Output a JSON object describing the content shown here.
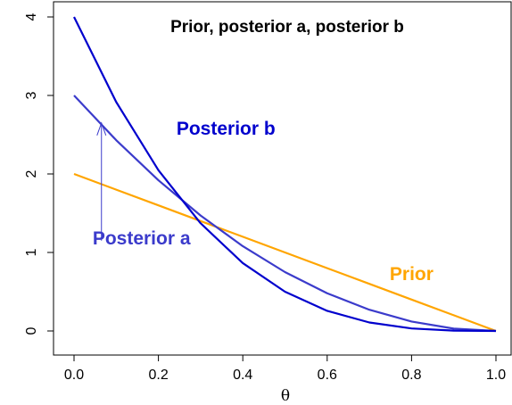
{
  "chart_data": {
    "type": "line",
    "title": "Prior, posterior a, posterior b",
    "xlabel": "θ",
    "ylabel": "",
    "xlim": [
      0,
      1
    ],
    "ylim": [
      0,
      4
    ],
    "x_ticks": [
      0.0,
      0.2,
      0.4,
      0.6,
      0.8,
      1.0
    ],
    "x_tick_labels": [
      "0.0",
      "0.2",
      "0.4",
      "0.6",
      "0.8",
      "1.0"
    ],
    "y_ticks": [
      0,
      1,
      2,
      3,
      4
    ],
    "y_tick_labels": [
      "0",
      "1",
      "2",
      "3",
      "4"
    ],
    "grid": false,
    "legend": "none",
    "series": [
      {
        "name": "Prior",
        "color": "#FFA500",
        "x": [
          0.0,
          0.1,
          0.2,
          0.3,
          0.4,
          0.5,
          0.6,
          0.7,
          0.8,
          0.9,
          1.0
        ],
        "values": [
          2.0,
          1.8,
          1.6,
          1.4,
          1.2,
          1.0,
          0.8,
          0.6,
          0.4,
          0.2,
          0.0
        ]
      },
      {
        "name": "Posterior a",
        "color": "#3B3BCB",
        "x": [
          0.0,
          0.1,
          0.2,
          0.3,
          0.4,
          0.5,
          0.6,
          0.7,
          0.8,
          0.9,
          1.0
        ],
        "values": [
          3.0,
          2.43,
          1.92,
          1.47,
          1.08,
          0.75,
          0.48,
          0.27,
          0.12,
          0.03,
          0.0
        ]
      },
      {
        "name": "Posterior b",
        "color": "#0000CD",
        "x": [
          0.0,
          0.1,
          0.2,
          0.3,
          0.4,
          0.5,
          0.6,
          0.7,
          0.8,
          0.9,
          1.0
        ],
        "values": [
          4.0,
          2.916,
          2.048,
          1.372,
          0.864,
          0.5,
          0.256,
          0.108,
          0.032,
          0.004,
          0.0
        ]
      }
    ],
    "annotations": [
      {
        "text": "Prior",
        "color": "#FFA500",
        "x": 0.8,
        "y": 0.65
      },
      {
        "text": "Posterior a",
        "color": "#3B3BCB",
        "x": 0.16,
        "y": 1.1
      },
      {
        "text": "Posterior b",
        "color": "#0000CD",
        "x": 0.36,
        "y": 2.5
      }
    ],
    "arrow": {
      "x": 0.065,
      "y_from": 1.15,
      "y_to": 2.65,
      "color": "#3B3BCB"
    }
  }
}
